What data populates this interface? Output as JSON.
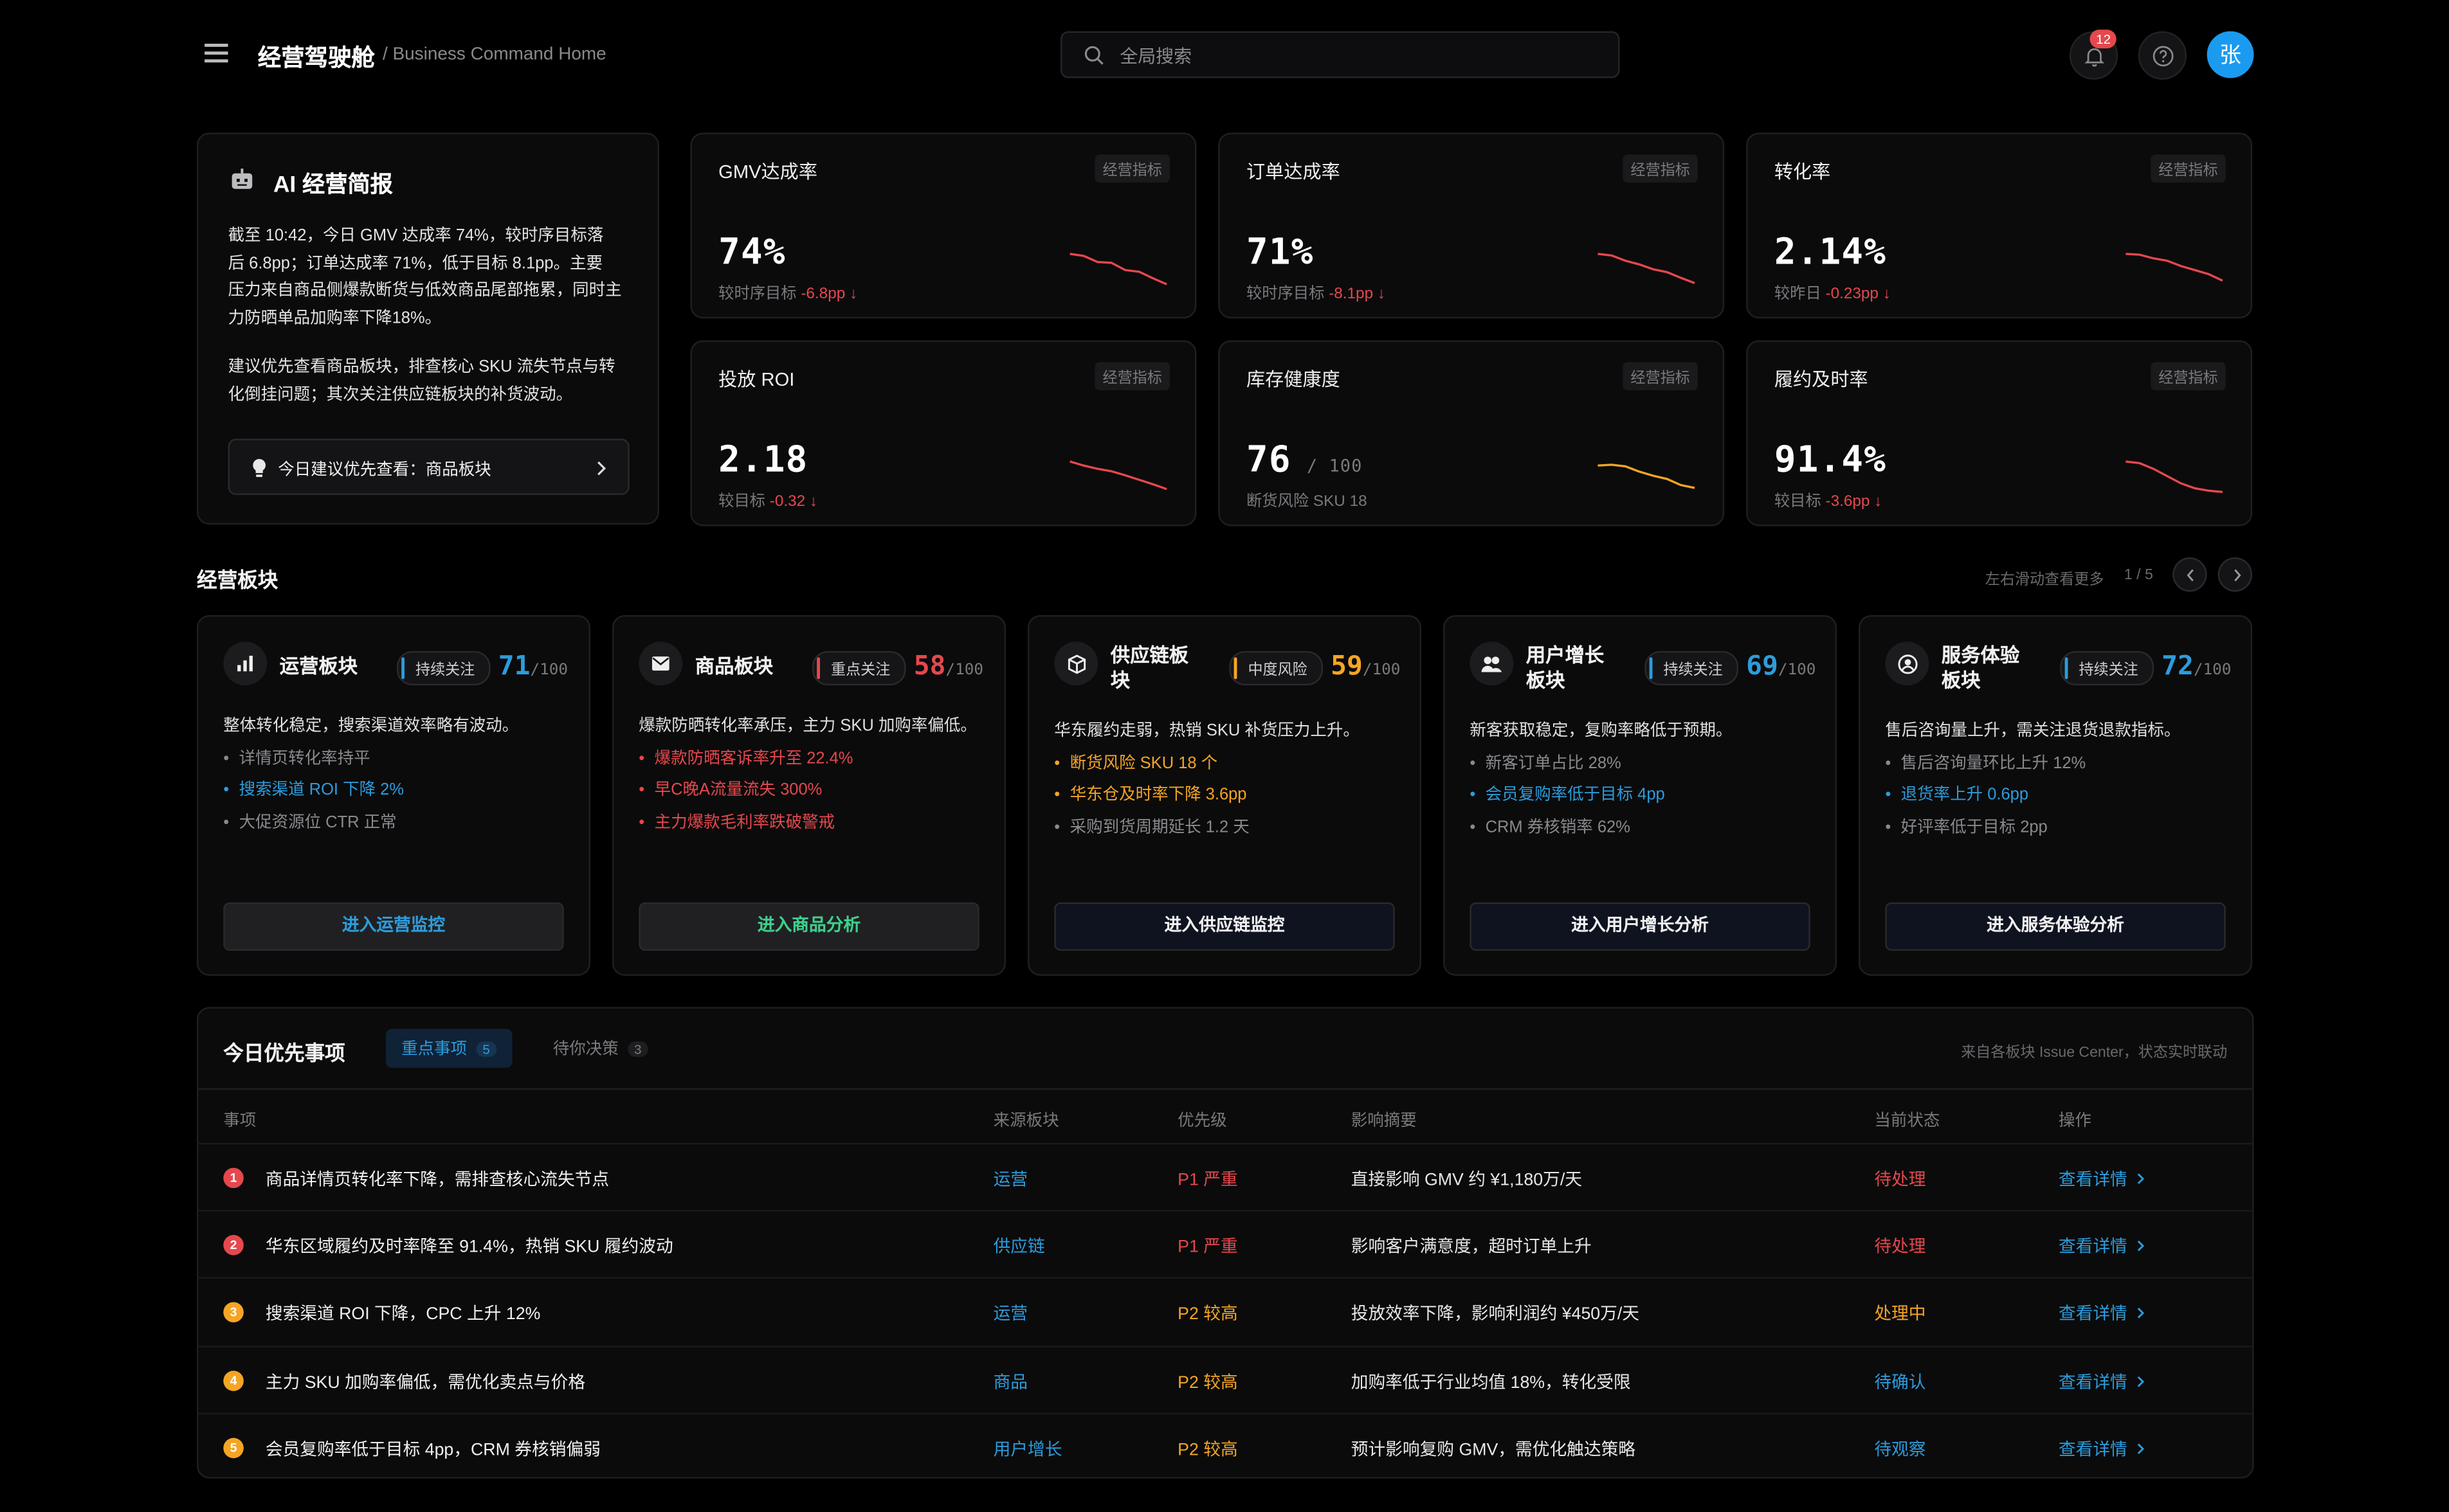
{
  "header": {
    "title": "经营驾驶舱",
    "subtitle": "/ Business Command Home",
    "search_placeholder": "全局搜索",
    "notification_count": "12",
    "avatar_text": "张"
  },
  "ai_brief": {
    "title": "AI 经营简报",
    "para1_lines": [
      "截至 10:42，今日 GMV 达成率 74%，较时序目标落",
      "后 6.8pp；订单达成率 71%，低于目标 8.1pp。主要",
      "压力来自商品侧爆款断货与低效商品尾部拖累，同时主",
      "力防晒单品加购率下降18%。"
    ],
    "para2_lines": [
      "建议优先查看商品板块，排查核心 SKU 流失节点与转",
      "化倒挂问题；其次关注供应链板块的补货波动。"
    ],
    "suggest": "今日建议优先查看：商品板块"
  },
  "kpis": [
    {
      "title": "GMV达成率",
      "tag": "经营指标",
      "value": "74%",
      "unit": "",
      "sub_label": "较时序目标",
      "delta": "-6.8pp ↓",
      "trend": [
        9,
        8.5,
        7,
        6.8,
        5,
        4.6,
        3,
        1.5
      ],
      "color": "#e5484d"
    },
    {
      "title": "订单达成率",
      "tag": "经营指标",
      "value": "71%",
      "unit": "",
      "sub_label": "较时序目标",
      "delta": "-8.1pp ↓",
      "trend": [
        9,
        8.6,
        7.3,
        6.4,
        5.2,
        4.5,
        3.1,
        1.8
      ],
      "color": "#e5484d"
    },
    {
      "title": "转化率",
      "tag": "经营指标",
      "value": "2.14%",
      "unit": "",
      "sub_label": "较昨日",
      "delta": "-0.23pp ↓",
      "trend": [
        9,
        8.8,
        7.9,
        7.3,
        6,
        5,
        4,
        2.4
      ],
      "color": "#e5484d"
    },
    {
      "title": "投放 ROI",
      "tag": "经营指标",
      "value": "2.18",
      "unit": "",
      "sub_label": "较目标",
      "delta": "-0.32 ↓",
      "trend": [
        9,
        8,
        7.2,
        6.6,
        5.6,
        4.5,
        3.4,
        2.2
      ],
      "color": "#e5484d"
    },
    {
      "title": "库存健康度",
      "tag": "经营指标",
      "value": "76",
      "unit": "/ 100",
      "sub_label": "断货风险 SKU 18",
      "delta": "",
      "trend": [
        8,
        8.2,
        7.8,
        6.5,
        5.5,
        4.7,
        3.2,
        2.5
      ],
      "color": "#f5a524"
    },
    {
      "title": "履约及时率",
      "tag": "经营指标",
      "value": "91.4%",
      "unit": "",
      "sub_label": "较目标",
      "delta": "-3.6pp ↓",
      "trend": [
        9,
        8.6,
        7.2,
        5.4,
        3.6,
        2.4,
        1.8,
        1.5
      ],
      "color": "#e5484d"
    }
  ],
  "segments_section": {
    "title": "经营板块",
    "scroll_hint": "左右滑动查看更多",
    "pager": "1 / 5"
  },
  "segments": [
    {
      "title_lines": [
        "运营板块"
      ],
      "badge": "持续关注",
      "badge_kind": "b",
      "score": "71",
      "score_max": "/100",
      "score_color": "#2d9cdb",
      "icon": "bar-chart-icon",
      "desc": "整体转化稳定，搜索渠道效率略有波动。",
      "items": [
        {
          "text": "详情页转化率持平",
          "color": "#8a8a8e"
        },
        {
          "text": "搜索渠道 ROI 下降 2%",
          "color": "#2d9cdb"
        },
        {
          "text": "大促资源位 CTR 正常",
          "color": "#8a8a8e"
        }
      ],
      "button": "进入运营监控",
      "button_color": "#2d9cdb",
      "button_bg": "#202022"
    },
    {
      "title_lines": [
        "商品板块"
      ],
      "badge": "重点关注",
      "badge_kind": "r",
      "score": "58",
      "score_max": "/100",
      "score_color": "#e5484d",
      "icon": "mail-icon",
      "desc": "爆款防晒转化率承压，主力 SKU 加购率偏低。",
      "items": [
        {
          "text": "爆款防晒客诉率升至 22.4%",
          "color": "#e5484d"
        },
        {
          "text": "早C晚A流量流失 300%",
          "color": "#e5484d"
        },
        {
          "text": "主力爆款毛利率跌破警戒",
          "color": "#e5484d"
        }
      ],
      "button": "进入商品分析",
      "button_color": "#3ecf8e",
      "button_bg": "#202022"
    },
    {
      "title_lines": [
        "供应链板",
        "块"
      ],
      "badge": "中度风险",
      "badge_kind": "o",
      "score": "59",
      "score_max": "/100",
      "score_color": "#f5a524",
      "icon": "box-icon",
      "desc": "华东履约走弱，热销 SKU 补货压力上升。",
      "items": [
        {
          "text": "断货风险 SKU 18 个",
          "color": "#f5a524"
        },
        {
          "text": "华东仓及时率下降 3.6pp",
          "color": "#f5a524"
        },
        {
          "text": "采购到货周期延长 1.2 天",
          "color": "#8a8a8e"
        }
      ],
      "button": "进入供应链监控",
      "button_color": "#f0f0f0",
      "button_bg": "#0f1320"
    },
    {
      "title_lines": [
        "用户增长",
        "板块"
      ],
      "badge": "持续关注",
      "badge_kind": "b",
      "score": "69",
      "score_max": "/100",
      "score_color": "#2d9cdb",
      "icon": "users-icon",
      "desc": "新客获取稳定，复购率略低于预期。",
      "items": [
        {
          "text": "新客订单占比 28%",
          "color": "#8a8a8e"
        },
        {
          "text": "会员复购率低于目标 4pp",
          "color": "#2d9cdb"
        },
        {
          "text": "CRM 券核销率 62%",
          "color": "#8a8a8e"
        }
      ],
      "button": "进入用户增长分析",
      "button_color": "#f0f0f0",
      "button_bg": "#0f1320"
    },
    {
      "title_lines": [
        "服务体验",
        "板块"
      ],
      "badge": "持续关注",
      "badge_kind": "b",
      "score": "72",
      "score_max": "/100",
      "score_color": "#2d9cdb",
      "icon": "user-circle-icon",
      "desc": "售后咨询量上升，需关注退货退款指标。",
      "items": [
        {
          "text": "售后咨询量环比上升 12%",
          "color": "#8a8a8e"
        },
        {
          "text": "退货率上升 0.6pp",
          "color": "#2d9cdb"
        },
        {
          "text": "好评率低于目标 2pp",
          "color": "#8a8a8e"
        }
      ],
      "button": "进入服务体验分析",
      "button_color": "#f0f0f0",
      "button_bg": "#0f1320"
    }
  ],
  "priority": {
    "title": "今日优先事项",
    "tab_active": "重点事项",
    "tab_active_count": "5",
    "tab_inactive": "待你决策",
    "tab_inactive_count": "3",
    "note": "来自各板块 Issue Center，状态实时联动",
    "columns": [
      "事项",
      "来源板块",
      "优先级",
      "影响摘要",
      "当前状态",
      "操作"
    ],
    "rows": [
      {
        "n": "1",
        "n_color": "#e5484d",
        "item": "商品详情页转化率下降，需排查核心流失节点",
        "source": "运营",
        "priority": "P1 严重",
        "pr_color": "#e5484d",
        "impact": "直接影响 GMV 约 ¥1,180万/天",
        "status": "待处理",
        "st_color": "#e5484d",
        "action": "查看详情"
      },
      {
        "n": "2",
        "n_color": "#e5484d",
        "item": "华东区域履约及时率降至 91.4%，热销 SKU 履约波动",
        "source": "供应链",
        "priority": "P1 严重",
        "pr_color": "#e5484d",
        "impact": "影响客户满意度，超时订单上升",
        "status": "待处理",
        "st_color": "#e5484d",
        "action": "查看详情"
      },
      {
        "n": "3",
        "n_color": "#f5a524",
        "item": "搜索渠道 ROI 下降，CPC 上升 12%",
        "source": "运营",
        "priority": "P2 较高",
        "pr_color": "#f5a524",
        "impact": "投放效率下降，影响利润约 ¥450万/天",
        "status": "处理中",
        "st_color": "#f5a524",
        "action": "查看详情"
      },
      {
        "n": "4",
        "n_color": "#f5a524",
        "item": "主力 SKU 加购率偏低，需优化卖点与价格",
        "source": "商品",
        "priority": "P2 较高",
        "pr_color": "#f5a524",
        "impact": "加购率低于行业均值 18%，转化受限",
        "status": "待确认",
        "st_color": "#2d9cdb",
        "action": "查看详情"
      },
      {
        "n": "5",
        "n_color": "#f5a524",
        "item": "会员复购率低于目标 4pp，CRM 券核销偏弱",
        "source": "用户增长",
        "priority": "P2 较高",
        "pr_color": "#f5a524",
        "impact": "预计影响复购 GMV，需优化触达策略",
        "status": "待观察",
        "st_color": "#2d9cdb",
        "action": "查看详情"
      }
    ]
  },
  "colors": {
    "accent": "#2d9cdb",
    "danger": "#e5484d",
    "warning": "#f5a524",
    "success": "#3ecf8e",
    "avatar_bg": "#1a9bf0"
  }
}
